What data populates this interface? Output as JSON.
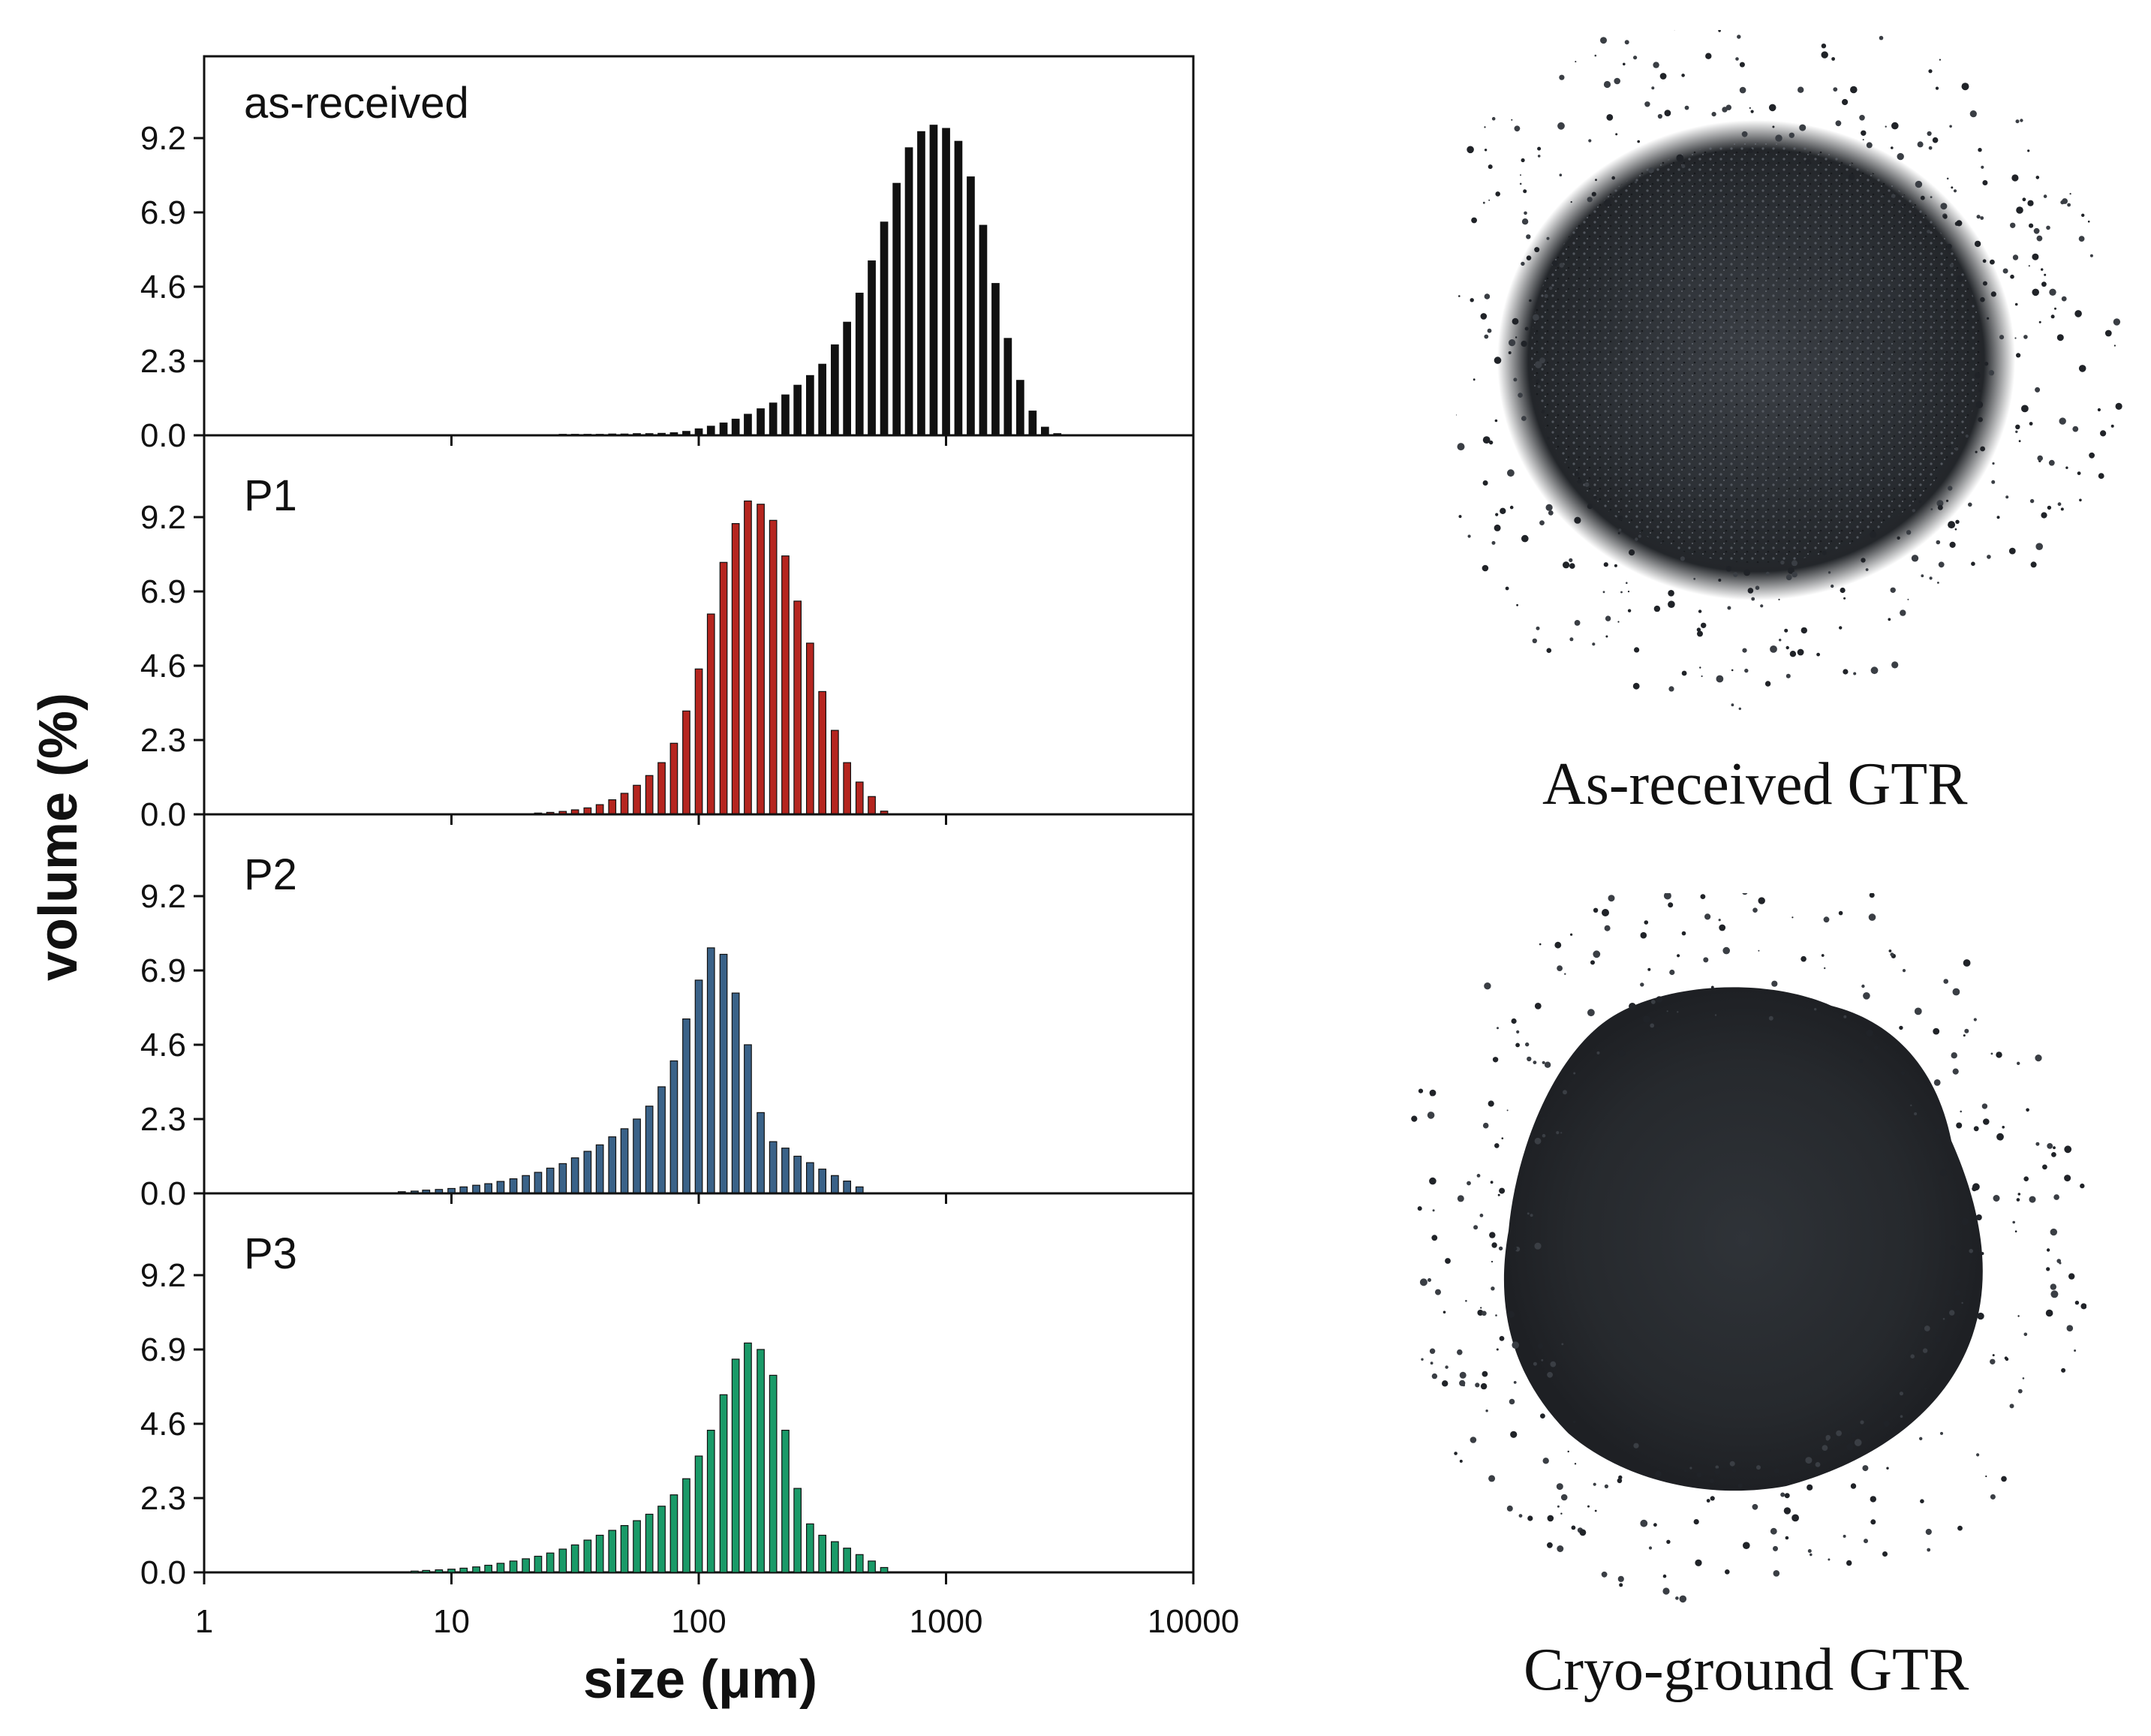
{
  "chart_data": {
    "type": "bar",
    "xlabel": "size (μm)",
    "ylabel": "volume (%)",
    "xscale": "log",
    "xlim": [
      1,
      10000
    ],
    "xticks": [
      "1",
      "10",
      "100",
      "1000",
      "10000"
    ],
    "ylim": [
      0,
      11.5
    ],
    "yticks": [
      "0.0",
      "2.3",
      "4.6",
      "6.9",
      "9.2"
    ],
    "grid": false,
    "layout": "four vertically stacked panels sharing the x axis",
    "panels": [
      {
        "name": "as-received",
        "color": "#111111",
        "series": [
          {
            "x": 20,
            "y": 0.02
          },
          {
            "x": 22.4,
            "y": 0.02
          },
          {
            "x": 25.1,
            "y": 0.02
          },
          {
            "x": 28.2,
            "y": 0.03
          },
          {
            "x": 31.6,
            "y": 0.03
          },
          {
            "x": 35.5,
            "y": 0.03
          },
          {
            "x": 39.8,
            "y": 0.03
          },
          {
            "x": 44.7,
            "y": 0.04
          },
          {
            "x": 50.1,
            "y": 0.04
          },
          {
            "x": 56.2,
            "y": 0.05
          },
          {
            "x": 63.1,
            "y": 0.05
          },
          {
            "x": 70.8,
            "y": 0.06
          },
          {
            "x": 79.4,
            "y": 0.08
          },
          {
            "x": 89.1,
            "y": 0.12
          },
          {
            "x": 100,
            "y": 0.2
          },
          {
            "x": 112,
            "y": 0.28
          },
          {
            "x": 126,
            "y": 0.38
          },
          {
            "x": 141,
            "y": 0.5
          },
          {
            "x": 158,
            "y": 0.65
          },
          {
            "x": 178,
            "y": 0.82
          },
          {
            "x": 200,
            "y": 1.0
          },
          {
            "x": 224,
            "y": 1.25
          },
          {
            "x": 251,
            "y": 1.55
          },
          {
            "x": 282,
            "y": 1.85
          },
          {
            "x": 316,
            "y": 2.2
          },
          {
            "x": 355,
            "y": 2.8
          },
          {
            "x": 398,
            "y": 3.5
          },
          {
            "x": 447,
            "y": 4.4
          },
          {
            "x": 501,
            "y": 5.4
          },
          {
            "x": 562,
            "y": 6.6
          },
          {
            "x": 631,
            "y": 7.8
          },
          {
            "x": 708,
            "y": 8.9
          },
          {
            "x": 794,
            "y": 9.4
          },
          {
            "x": 891,
            "y": 9.6
          },
          {
            "x": 1000,
            "y": 9.5
          },
          {
            "x": 1122,
            "y": 9.1
          },
          {
            "x": 1259,
            "y": 8.0
          },
          {
            "x": 1413,
            "y": 6.5
          },
          {
            "x": 1585,
            "y": 4.7
          },
          {
            "x": 1778,
            "y": 3.0
          },
          {
            "x": 1995,
            "y": 1.7
          },
          {
            "x": 2239,
            "y": 0.75
          },
          {
            "x": 2512,
            "y": 0.25
          },
          {
            "x": 2818,
            "y": 0.05
          }
        ]
      },
      {
        "name": "P1",
        "color": "#b5251f",
        "series": [
          {
            "x": 20,
            "y": 0.02
          },
          {
            "x": 22.4,
            "y": 0.04
          },
          {
            "x": 25.1,
            "y": 0.06
          },
          {
            "x": 28.2,
            "y": 0.09
          },
          {
            "x": 31.6,
            "y": 0.14
          },
          {
            "x": 35.5,
            "y": 0.2
          },
          {
            "x": 39.8,
            "y": 0.3
          },
          {
            "x": 44.7,
            "y": 0.45
          },
          {
            "x": 50.1,
            "y": 0.65
          },
          {
            "x": 56.2,
            "y": 0.9
          },
          {
            "x": 63.1,
            "y": 1.2
          },
          {
            "x": 70.8,
            "y": 1.6
          },
          {
            "x": 79.4,
            "y": 2.2
          },
          {
            "x": 89.1,
            "y": 3.2
          },
          {
            "x": 100,
            "y": 4.5
          },
          {
            "x": 112,
            "y": 6.2
          },
          {
            "x": 126,
            "y": 7.8
          },
          {
            "x": 141,
            "y": 9.0
          },
          {
            "x": 158,
            "y": 9.7
          },
          {
            "x": 178,
            "y": 9.6
          },
          {
            "x": 200,
            "y": 9.1
          },
          {
            "x": 224,
            "y": 8.0
          },
          {
            "x": 251,
            "y": 6.6
          },
          {
            "x": 282,
            "y": 5.3
          },
          {
            "x": 316,
            "y": 3.8
          },
          {
            "x": 355,
            "y": 2.6
          },
          {
            "x": 398,
            "y": 1.6
          },
          {
            "x": 447,
            "y": 1.0
          },
          {
            "x": 501,
            "y": 0.55
          },
          {
            "x": 562,
            "y": 0.1
          }
        ]
      },
      {
        "name": "P2",
        "color": "#3a6288",
        "series": [
          {
            "x": 6.3,
            "y": 0.05
          },
          {
            "x": 7.1,
            "y": 0.07
          },
          {
            "x": 7.9,
            "y": 0.1
          },
          {
            "x": 8.9,
            "y": 0.12
          },
          {
            "x": 10,
            "y": 0.15
          },
          {
            "x": 11.2,
            "y": 0.2
          },
          {
            "x": 12.6,
            "y": 0.25
          },
          {
            "x": 14.1,
            "y": 0.3
          },
          {
            "x": 15.8,
            "y": 0.37
          },
          {
            "x": 17.8,
            "y": 0.45
          },
          {
            "x": 20,
            "y": 0.55
          },
          {
            "x": 22.4,
            "y": 0.65
          },
          {
            "x": 25.1,
            "y": 0.78
          },
          {
            "x": 28.2,
            "y": 0.92
          },
          {
            "x": 31.6,
            "y": 1.1
          },
          {
            "x": 35.5,
            "y": 1.3
          },
          {
            "x": 39.8,
            "y": 1.5
          },
          {
            "x": 44.7,
            "y": 1.75
          },
          {
            "x": 50.1,
            "y": 2.0
          },
          {
            "x": 56.2,
            "y": 2.3
          },
          {
            "x": 63.1,
            "y": 2.7
          },
          {
            "x": 70.8,
            "y": 3.3
          },
          {
            "x": 79.4,
            "y": 4.1
          },
          {
            "x": 89.1,
            "y": 5.4
          },
          {
            "x": 100,
            "y": 6.6
          },
          {
            "x": 112,
            "y": 7.6
          },
          {
            "x": 126,
            "y": 7.4
          },
          {
            "x": 141,
            "y": 6.2
          },
          {
            "x": 158,
            "y": 4.6
          },
          {
            "x": 178,
            "y": 2.5
          },
          {
            "x": 200,
            "y": 1.6
          },
          {
            "x": 224,
            "y": 1.4
          },
          {
            "x": 251,
            "y": 1.15
          },
          {
            "x": 282,
            "y": 0.95
          },
          {
            "x": 316,
            "y": 0.75
          },
          {
            "x": 355,
            "y": 0.55
          },
          {
            "x": 398,
            "y": 0.38
          },
          {
            "x": 447,
            "y": 0.2
          }
        ]
      },
      {
        "name": "P3",
        "color": "#1a9a68",
        "series": [
          {
            "x": 7.1,
            "y": 0.04
          },
          {
            "x": 7.9,
            "y": 0.06
          },
          {
            "x": 8.9,
            "y": 0.08
          },
          {
            "x": 10,
            "y": 0.1
          },
          {
            "x": 11.2,
            "y": 0.13
          },
          {
            "x": 12.6,
            "y": 0.17
          },
          {
            "x": 14.1,
            "y": 0.22
          },
          {
            "x": 15.8,
            "y": 0.28
          },
          {
            "x": 17.8,
            "y": 0.35
          },
          {
            "x": 20,
            "y": 0.42
          },
          {
            "x": 22.4,
            "y": 0.5
          },
          {
            "x": 25.1,
            "y": 0.6
          },
          {
            "x": 28.2,
            "y": 0.72
          },
          {
            "x": 31.6,
            "y": 0.85
          },
          {
            "x": 35.5,
            "y": 1.0
          },
          {
            "x": 39.8,
            "y": 1.15
          },
          {
            "x": 44.7,
            "y": 1.3
          },
          {
            "x": 50.1,
            "y": 1.45
          },
          {
            "x": 56.2,
            "y": 1.6
          },
          {
            "x": 63.1,
            "y": 1.8
          },
          {
            "x": 70.8,
            "y": 2.05
          },
          {
            "x": 79.4,
            "y": 2.4
          },
          {
            "x": 89.1,
            "y": 2.9
          },
          {
            "x": 100,
            "y": 3.6
          },
          {
            "x": 112,
            "y": 4.4
          },
          {
            "x": 126,
            "y": 5.5
          },
          {
            "x": 141,
            "y": 6.6
          },
          {
            "x": 158,
            "y": 7.1
          },
          {
            "x": 178,
            "y": 6.9
          },
          {
            "x": 200,
            "y": 6.1
          },
          {
            "x": 224,
            "y": 4.4
          },
          {
            "x": 251,
            "y": 2.6
          },
          {
            "x": 282,
            "y": 1.5
          },
          {
            "x": 316,
            "y": 1.15
          },
          {
            "x": 355,
            "y": 0.95
          },
          {
            "x": 398,
            "y": 0.75
          },
          {
            "x": 447,
            "y": 0.55
          },
          {
            "x": 501,
            "y": 0.35
          },
          {
            "x": 562,
            "y": 0.15
          }
        ]
      }
    ]
  },
  "photos": [
    {
      "caption": "As-received GTR",
      "name": "as-received-gtr"
    },
    {
      "caption": "Cryo-ground GTR",
      "name": "cryo-ground-gtr"
    }
  ]
}
